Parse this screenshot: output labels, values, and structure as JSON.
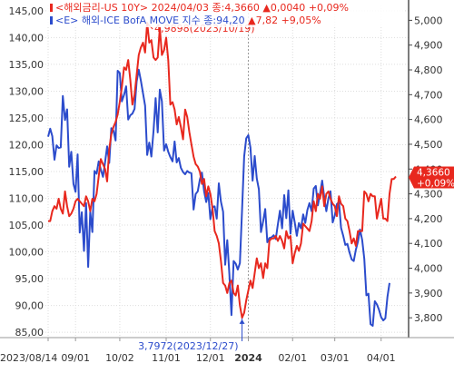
{
  "chart_data": {
    "type": "line",
    "legend": {
      "row1": {
        "name": "<해외금리-US 10Y>",
        "date": "2024/04/03",
        "value_text": "종:4,3660",
        "change_text": "▲0,0040",
        "pct_text": "+0,09%"
      },
      "row2": {
        "name": "<E> 해외-ICE BofA MOVE 지수",
        "value_text": "종:94,20",
        "change_text": "▲7,82",
        "pct_text": "+9,05%"
      }
    },
    "left_axis": {
      "ylim": [
        84,
        146
      ],
      "ticks": [
        85,
        90,
        95,
        100,
        105,
        110,
        115,
        120,
        125,
        130,
        135,
        140,
        145
      ],
      "labels": [
        "85,00",
        "90,00",
        "95,00",
        "100,00",
        "105,00",
        "110,00",
        "115,00",
        "120,00",
        "125,00",
        "130,00",
        "135,00",
        "140,00",
        "145,00"
      ]
    },
    "right_axis": {
      "ylim": [
        3.72,
        5.06
      ],
      "ticks": [
        3.8,
        3.9,
        4.0,
        4.1,
        4.2,
        4.3,
        4.4,
        4.5,
        4.6,
        4.7,
        4.8,
        4.9,
        5.0
      ],
      "labels": [
        "3,800",
        "3,900",
        "4,000",
        "4,100",
        "4,200",
        "4,300",
        "4,400",
        "4,500",
        "4,600",
        "4,700",
        "4,800",
        "4,900",
        "5,000"
      ]
    },
    "x_axis": {
      "labels": [
        "2023/08/14",
        "09/01",
        "10/02",
        "11/01",
        "12/01",
        "2024",
        "02/01",
        "03/01",
        "04/01"
      ],
      "label_index": [
        0,
        13,
        34,
        56,
        77,
        95,
        116,
        136,
        158
      ]
    },
    "current_value_badge": {
      "value_text": "4,3660",
      "pct_text": "+0,09%",
      "value": 4.366
    },
    "annotations": [
      {
        "text": "4,9898(2023/10/19)",
        "value": 4.9898,
        "index": 47
      },
      {
        "text": "3,7972(2023/12/27)",
        "value": 3.7972,
        "index": 92
      }
    ],
    "series": [
      {
        "name": "US 10Y",
        "axis": "right",
        "color": "#e8281e",
        "values": [
          4.19,
          4.19,
          4.23,
          4.25,
          4.24,
          4.28,
          4.24,
          4.22,
          4.31,
          4.25,
          4.21,
          4.22,
          4.24,
          4.27,
          4.28,
          4.27,
          4.26,
          4.25,
          4.29,
          4.27,
          4.23,
          4.28,
          4.27,
          4.3,
          4.37,
          4.44,
          4.42,
          4.4,
          4.35,
          4.48,
          4.54,
          4.57,
          4.59,
          4.62,
          4.67,
          4.73,
          4.81,
          4.8,
          4.84,
          4.76,
          4.66,
          4.7,
          4.78,
          4.86,
          4.89,
          4.91,
          4.87,
          4.99,
          4.91,
          4.92,
          4.85,
          4.84,
          4.85,
          4.97,
          4.86,
          4.88,
          4.93,
          4.84,
          4.66,
          4.67,
          4.64,
          4.58,
          4.61,
          4.57,
          4.52,
          4.64,
          4.61,
          4.55,
          4.5,
          4.45,
          4.42,
          4.41,
          4.39,
          4.34,
          4.36,
          4.29,
          4.33,
          4.3,
          4.24,
          4.15,
          4.13,
          4.1,
          4.03,
          3.94,
          3.93,
          3.9,
          3.94,
          3.95,
          3.9,
          3.89,
          3.93,
          3.85,
          3.8,
          3.82,
          3.87,
          3.91,
          3.95,
          3.92,
          3.98,
          4.04,
          4.0,
          4.02,
          3.96,
          4.02,
          4.0,
          4.11,
          4.12,
          4.12,
          4.13,
          4.11,
          4.13,
          4.11,
          4.08,
          4.15,
          4.12,
          4.13,
          4.02,
          4.06,
          4.09,
          4.07,
          4.1,
          4.18,
          4.17,
          4.16,
          4.15,
          4.19,
          4.27,
          4.23,
          4.3,
          4.28,
          4.33,
          4.25,
          4.3,
          4.31,
          4.28,
          4.26,
          4.25,
          4.21,
          4.29,
          4.26,
          4.25,
          4.2,
          4.19,
          4.15,
          4.1,
          4.12,
          4.09,
          4.15,
          4.15,
          4.15,
          4.31,
          4.3,
          4.27,
          4.3,
          4.29,
          4.29,
          4.2,
          4.24,
          4.28,
          4.2,
          4.2,
          4.19,
          4.3,
          4.36,
          4.36,
          4.37
        ]
      },
      {
        "name": "ICE BofA MOVE",
        "axis": "left",
        "color": "#2c4ccc",
        "values": [
          121.5,
          123.0,
          121.6,
          117.2,
          119.9,
          119.4,
          119.5,
          129.1,
          124.6,
          126.6,
          115.9,
          118.7,
          112.7,
          111.2,
          118.2,
          103.6,
          107.4,
          100.2,
          109.1,
          97.2,
          107.5,
          103.7,
          115.1,
          114.6,
          116.9,
          115.4,
          114.0,
          116.7,
          119.7,
          116.6,
          123.1,
          122.6,
          120.8,
          133.8,
          133.4,
          128.1,
          129.3,
          130.9,
          124.7,
          125.5,
          125.8,
          126.7,
          131.8,
          134.0,
          132.0,
          129.6,
          127.3,
          118.1,
          120.4,
          117.8,
          122.6,
          128.7,
          122.3,
          130.3,
          128.1,
          118.9,
          120.1,
          118.7,
          117.7,
          116.9,
          120.6,
          116.7,
          117.5,
          115.7,
          114.9,
          114.5,
          115.1,
          114.8,
          114.7,
          107.9,
          110.8,
          111.3,
          113.5,
          114.8,
          111.3,
          109.3,
          111.0,
          106.1,
          108.4,
          108.5,
          106.2,
          112.8,
          109.4,
          107.5,
          97.6,
          102.2,
          95.9,
          88.2,
          98.3,
          97.8,
          96.7,
          97.9,
          107.9,
          117.8,
          121.2,
          121.8,
          119.5,
          113.3,
          117.9,
          113.7,
          111.7,
          103.7,
          105.7,
          108.0,
          101.8,
          102.6,
          102.7,
          103.1,
          102.4,
          105.1,
          107.7,
          104.4,
          110.6,
          106.3,
          111.5,
          103.4,
          107.7,
          105.5,
          103.0,
          105.4,
          104.4,
          107.0,
          105.4,
          107.8,
          109.1,
          107.6,
          111.8,
          112.3,
          108.7,
          110.8,
          113.3,
          110.2,
          107.6,
          110.0,
          111.3,
          105.5,
          106.8,
          108.9,
          109.3,
          104.5,
          103.0,
          101.3,
          101.5,
          99.9,
          98.6,
          98.3,
          100.4,
          101.9,
          104.2,
          102.2,
          98.7,
          91.9,
          92.2,
          86.5,
          86.2,
          90.8,
          90.2,
          89.2,
          87.8,
          87.2,
          87.6,
          91.6,
          94.2
        ]
      }
    ]
  }
}
